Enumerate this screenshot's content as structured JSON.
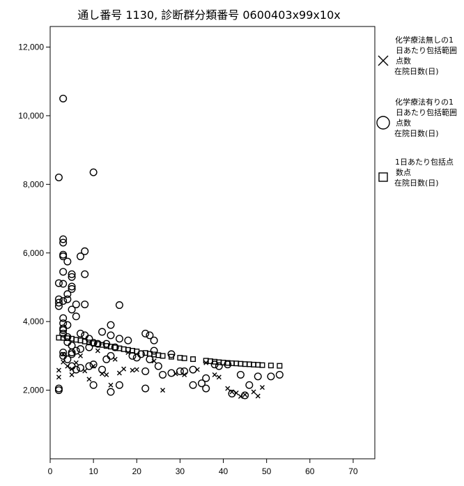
{
  "chart_data": {
    "type": "scatter",
    "title": "通し番号 1130, 診断群分類番号 0600403x99x10x",
    "xlabel": "",
    "ylabel": "",
    "xlim": [
      0,
      75
    ],
    "ylim": [
      0,
      12600
    ],
    "x_ticks": [
      0,
      10,
      20,
      30,
      40,
      50,
      60,
      70
    ],
    "y_ticks": [
      2000,
      4000,
      6000,
      8000,
      10000,
      12000
    ],
    "x_tick_labels": [
      "0",
      "10",
      "20",
      "30",
      "40",
      "50",
      "60",
      "70"
    ],
    "y_tick_labels": [
      "2,000",
      "4,000",
      "6,000",
      "8,000",
      "10,000",
      "12,000"
    ],
    "grid": false,
    "legend_position": "right",
    "series": [
      {
        "marker": "x",
        "legend_lines": [
          "化学療法無しの1",
          "日あたり包括範囲",
          "点数",
          "在院日数(日)"
        ],
        "points": [
          [
            2,
            2580
          ],
          [
            2,
            2380
          ],
          [
            3,
            2820
          ],
          [
            3,
            3050
          ],
          [
            4,
            2700
          ],
          [
            5,
            2450
          ],
          [
            5,
            2620
          ],
          [
            6,
            2800
          ],
          [
            7,
            3000
          ],
          [
            8,
            2560
          ],
          [
            9,
            2320
          ],
          [
            10,
            2700
          ],
          [
            11,
            3150
          ],
          [
            12,
            2480
          ],
          [
            13,
            2450
          ],
          [
            14,
            2150
          ],
          [
            15,
            2900
          ],
          [
            16,
            2500
          ],
          [
            17,
            2620
          ],
          [
            18,
            3100
          ],
          [
            19,
            2580
          ],
          [
            20,
            2600
          ],
          [
            24,
            2850
          ],
          [
            26,
            2000
          ],
          [
            29,
            2480
          ],
          [
            31,
            2450
          ],
          [
            38,
            2450
          ],
          [
            39,
            2380
          ],
          [
            41,
            2050
          ],
          [
            42,
            1950
          ],
          [
            43,
            1920
          ],
          [
            44,
            1820
          ],
          [
            45,
            1870
          ],
          [
            47,
            1950
          ],
          [
            48,
            1830
          ],
          [
            49,
            2080
          ],
          [
            34,
            2600
          ],
          [
            36,
            2800
          ]
        ]
      },
      {
        "marker": "circle",
        "legend_lines": [
          "化学療法有りの1",
          "日あたり包括範囲",
          "点数",
          "在院日数(日)"
        ],
        "points": [
          [
            3,
            10500
          ],
          [
            2,
            8200
          ],
          [
            10,
            8350
          ],
          [
            3,
            6400
          ],
          [
            3,
            6300
          ],
          [
            3,
            5950
          ],
          [
            3,
            5900
          ],
          [
            4,
            5750
          ],
          [
            8,
            6050
          ],
          [
            7,
            5900
          ],
          [
            5,
            5380
          ],
          [
            5,
            5300
          ],
          [
            3,
            5450
          ],
          [
            8,
            5380
          ],
          [
            2,
            5120
          ],
          [
            3,
            5100
          ],
          [
            5,
            5020
          ],
          [
            5,
            4950
          ],
          [
            4,
            4800
          ],
          [
            2,
            4650
          ],
          [
            2,
            4550
          ],
          [
            3,
            4600
          ],
          [
            2,
            4450
          ],
          [
            4,
            4650
          ],
          [
            6,
            4500
          ],
          [
            8,
            4500
          ],
          [
            16,
            4480
          ],
          [
            5,
            4350
          ],
          [
            6,
            4150
          ],
          [
            3,
            4100
          ],
          [
            3,
            3950
          ],
          [
            3,
            3800
          ],
          [
            3,
            3750
          ],
          [
            3,
            3650
          ],
          [
            4,
            3900
          ],
          [
            4,
            3550
          ],
          [
            4,
            3400
          ],
          [
            5,
            3300
          ],
          [
            7,
            3650
          ],
          [
            8,
            3600
          ],
          [
            9,
            3500
          ],
          [
            10,
            3380
          ],
          [
            11,
            3350
          ],
          [
            9,
            3250
          ],
          [
            7,
            3200
          ],
          [
            6,
            3150
          ],
          [
            5,
            3100
          ],
          [
            3,
            3100
          ],
          [
            3,
            3000
          ],
          [
            5,
            3050
          ],
          [
            4,
            2900
          ],
          [
            5,
            2700
          ],
          [
            6,
            2600
          ],
          [
            7,
            2650
          ],
          [
            9,
            2700
          ],
          [
            10,
            2750
          ],
          [
            12,
            2600
          ],
          [
            13,
            2900
          ],
          [
            14,
            3000
          ],
          [
            15,
            3250
          ],
          [
            13,
            3350
          ],
          [
            14,
            3600
          ],
          [
            14,
            3900
          ],
          [
            12,
            3700
          ],
          [
            16,
            3500
          ],
          [
            18,
            3450
          ],
          [
            19,
            3000
          ],
          [
            20,
            2950
          ],
          [
            21,
            3050
          ],
          [
            22,
            3650
          ],
          [
            23,
            3600
          ],
          [
            24,
            3450
          ],
          [
            24,
            3150
          ],
          [
            22,
            2550
          ],
          [
            23,
            2900
          ],
          [
            25,
            2700
          ],
          [
            26,
            2450
          ],
          [
            28,
            3050
          ],
          [
            30,
            2550
          ],
          [
            31,
            2550
          ],
          [
            33,
            2600
          ],
          [
            35,
            2200
          ],
          [
            36,
            2050
          ],
          [
            38,
            2750
          ],
          [
            39,
            2700
          ],
          [
            41,
            2750
          ],
          [
            42,
            1900
          ],
          [
            44,
            2450
          ],
          [
            45,
            1850
          ],
          [
            46,
            2150
          ],
          [
            48,
            2400
          ],
          [
            51,
            2400
          ],
          [
            53,
            2450
          ],
          [
            10,
            2150
          ],
          [
            14,
            1950
          ],
          [
            16,
            2150
          ],
          [
            22,
            2050
          ],
          [
            2,
            2000
          ],
          [
            2,
            2050
          ],
          [
            28,
            2500
          ],
          [
            33,
            2150
          ],
          [
            36,
            2350
          ]
        ]
      },
      {
        "marker": "square",
        "legend_lines": [
          "1日あたり包括点",
          "数点",
          "在院日数(日)"
        ],
        "points": [
          [
            2,
            3530
          ],
          [
            3,
            3525
          ],
          [
            4,
            3515
          ],
          [
            5,
            3500
          ],
          [
            6,
            3470
          ],
          [
            7,
            3450
          ],
          [
            8,
            3420
          ],
          [
            9,
            3390
          ],
          [
            10,
            3370
          ],
          [
            11,
            3345
          ],
          [
            12,
            3320
          ],
          [
            13,
            3290
          ],
          [
            14,
            3270
          ],
          [
            15,
            3245
          ],
          [
            16,
            3220
          ],
          [
            17,
            3195
          ],
          [
            18,
            3175
          ],
          [
            19,
            3150
          ],
          [
            20,
            3130
          ],
          [
            22,
            3085
          ],
          [
            23,
            3060
          ],
          [
            24,
            3040
          ],
          [
            25,
            3020
          ],
          [
            26,
            3000
          ],
          [
            28,
            2975
          ],
          [
            30,
            2945
          ],
          [
            31,
            2930
          ],
          [
            33,
            2905
          ],
          [
            36,
            2860
          ],
          [
            37,
            2845
          ],
          [
            38,
            2830
          ],
          [
            39,
            2815
          ],
          [
            40,
            2805
          ],
          [
            41,
            2795
          ],
          [
            42,
            2785
          ],
          [
            43,
            2780
          ],
          [
            44,
            2770
          ],
          [
            45,
            2760
          ],
          [
            46,
            2755
          ],
          [
            47,
            2745
          ],
          [
            48,
            2740
          ],
          [
            49,
            2730
          ],
          [
            51,
            2720
          ],
          [
            53,
            2710
          ]
        ]
      }
    ]
  }
}
